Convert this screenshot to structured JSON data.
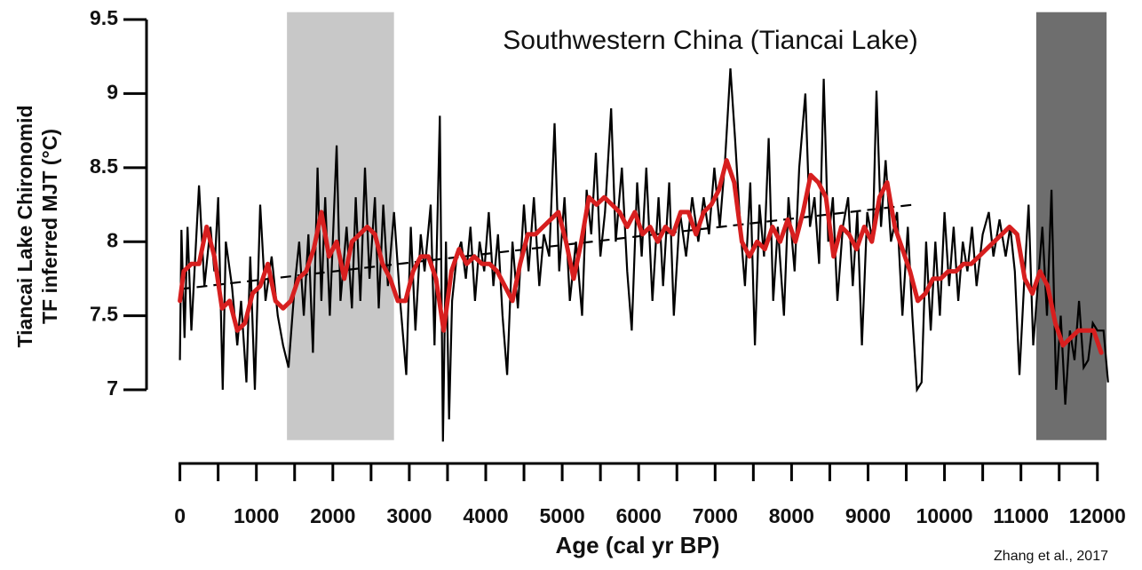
{
  "chart_data": {
    "type": "line",
    "title": "Southwestern China (Tiancai Lake)",
    "y_label_lines": [
      "Tiancai Lake Chironomid",
      "TF inferred MJT (°C)"
    ],
    "x_label": "Age (cal yr BP)",
    "source": "Zhang et al., 2017",
    "xlim": [
      -100,
      12200
    ],
    "ylim": [
      6.66,
      9.55
    ],
    "xticks": [
      0,
      1000,
      2000,
      3000,
      4000,
      5000,
      6000,
      7000,
      8000,
      9000,
      10000,
      11000,
      12000
    ],
    "xminorticks": [
      500,
      1500,
      2500,
      3500,
      4500,
      5500,
      6500,
      7500,
      8500,
      9500,
      10500,
      11500
    ],
    "yticks": [
      7,
      7.5,
      8,
      8.5,
      9,
      9.5
    ],
    "shaded_regions": [
      {
        "x": [
          1400,
          2800
        ],
        "color": "#c8c8c8"
      },
      {
        "x": [
          11200,
          12120
        ],
        "color": "#6e6e6e"
      }
    ],
    "series": [
      {
        "color": "#000000",
        "style": "solid",
        "x": [
          0,
          20,
          60,
          100,
          150,
          250,
          320,
          400,
          450,
          500,
          560,
          600,
          680,
          750,
          800,
          870,
          920,
          980,
          1050,
          1120,
          1200,
          1280,
          1350,
          1420,
          1500,
          1560,
          1620,
          1680,
          1740,
          1800,
          1850,
          1900,
          1960,
          2050,
          2100,
          2180,
          2250,
          2300,
          2360,
          2420,
          2480,
          2550,
          2600,
          2660,
          2720,
          2800,
          2880,
          2960,
          3020,
          3080,
          3150,
          3200,
          3280,
          3330,
          3400,
          3440,
          3480,
          3520,
          3560,
          3620,
          3680,
          3740,
          3800,
          3860,
          3920,
          3980,
          4040,
          4100,
          4160,
          4220,
          4280,
          4350,
          4420,
          4500,
          4560,
          4630,
          4700,
          4760,
          4830,
          4900,
          4960,
          5030,
          5100,
          5180,
          5260,
          5320,
          5380,
          5440,
          5500,
          5560,
          5640,
          5700,
          5780,
          5850,
          5910,
          5980,
          6040,
          6100,
          6180,
          6260,
          6320,
          6400,
          6460,
          6540,
          6620,
          6700,
          6780,
          6850,
          6920,
          6990,
          7060,
          7130,
          7200,
          7260,
          7330,
          7390,
          7460,
          7520,
          7580,
          7640,
          7700,
          7760,
          7820,
          7900,
          7960,
          8040,
          8100,
          8180,
          8240,
          8300,
          8360,
          8420,
          8480,
          8540,
          8600,
          8670,
          8740,
          8800,
          8860,
          8920,
          8990,
          9060,
          9110,
          9170,
          9230,
          9300,
          9380,
          9450,
          9520,
          9580,
          9640,
          9700,
          9760,
          9820,
          9880,
          9940,
          10000,
          10060,
          10120,
          10180,
          10240,
          10300,
          10360,
          10420,
          10500,
          10580,
          10640,
          10720,
          10800,
          10860,
          10920,
          10980,
          11040,
          11100,
          11160,
          11220,
          11280,
          11340,
          11400,
          11460,
          11520,
          11580,
          11640,
          11700,
          11760,
          11820,
          11880,
          11940,
          12000,
          12080,
          12140
        ],
        "values": [
          7.2,
          8.08,
          7.35,
          8.1,
          7.4,
          8.38,
          7.7,
          8.1,
          7.8,
          8.3,
          7.0,
          8.0,
          7.7,
          7.3,
          7.6,
          7.05,
          7.9,
          7.0,
          8.25,
          7.6,
          7.9,
          7.5,
          7.3,
          7.15,
          7.7,
          8.0,
          7.5,
          8.05,
          7.25,
          8.5,
          7.6,
          8.3,
          7.5,
          8.65,
          7.6,
          8.1,
          7.55,
          8.3,
          7.6,
          8.5,
          7.75,
          8.3,
          7.55,
          8.25,
          7.7,
          8.2,
          7.6,
          7.1,
          8.1,
          7.4,
          8.05,
          7.8,
          8.25,
          7.3,
          8.85,
          6.65,
          8.0,
          6.8,
          7.6,
          7.9,
          8.0,
          7.75,
          8.1,
          7.6,
          8.0,
          7.8,
          8.2,
          7.7,
          8.05,
          7.5,
          7.1,
          8.0,
          7.55,
          8.25,
          7.8,
          8.3,
          7.7,
          8.05,
          7.9,
          8.8,
          7.8,
          8.3,
          7.6,
          8.0,
          7.5,
          8.35,
          8.05,
          8.6,
          7.9,
          8.2,
          8.9,
          8.0,
          8.5,
          7.8,
          7.4,
          8.4,
          7.9,
          8.5,
          7.6,
          8.3,
          7.7,
          8.4,
          7.5,
          8.2,
          7.9,
          8.3,
          8.0,
          8.3,
          8.05,
          8.5,
          8.1,
          8.55,
          9.17,
          8.7,
          8.1,
          7.7,
          8.4,
          7.3,
          8.25,
          7.9,
          8.7,
          7.6,
          8.1,
          7.5,
          8.3,
          7.8,
          8.5,
          9.0,
          8.1,
          8.3,
          7.85,
          9.1,
          8.0,
          8.3,
          7.6,
          8.1,
          8.3,
          7.7,
          8.2,
          7.3,
          8.2,
          8.0,
          9.02,
          8.1,
          8.55,
          8.0,
          8.2,
          7.5,
          8.1,
          7.5,
          7.0,
          7.05,
          8.0,
          7.4,
          8.0,
          7.5,
          8.2,
          7.7,
          8.1,
          7.6,
          8.0,
          7.8,
          8.1,
          7.7,
          8.05,
          8.2,
          7.9,
          8.15,
          7.9,
          8.1,
          7.8,
          7.1,
          7.7,
          8.25,
          7.3,
          7.7,
          8.1,
          7.5,
          8.35,
          7.0,
          7.5,
          6.9,
          7.4,
          7.2,
          7.6,
          7.15,
          7.2,
          7.45,
          7.4,
          7.4,
          7.05
        ]
      },
      {
        "color": "#000000",
        "style": "dashed",
        "x": [
          0,
          9600
        ],
        "values": [
          7.68,
          8.25
        ]
      },
      {
        "color": "#d71f1f",
        "style": "thick",
        "x": [
          0,
          50,
          150,
          250,
          350,
          450,
          550,
          650,
          750,
          850,
          950,
          1050,
          1150,
          1250,
          1350,
          1450,
          1550,
          1650,
          1750,
          1850,
          1950,
          2050,
          2150,
          2250,
          2350,
          2450,
          2550,
          2650,
          2750,
          2850,
          2950,
          3050,
          3150,
          3250,
          3350,
          3450,
          3550,
          3650,
          3750,
          3850,
          3950,
          4050,
          4150,
          4250,
          4350,
          4450,
          4550,
          4650,
          4750,
          4850,
          4950,
          5050,
          5150,
          5250,
          5350,
          5450,
          5550,
          5650,
          5750,
          5850,
          5950,
          6050,
          6150,
          6250,
          6350,
          6450,
          6550,
          6650,
          6750,
          6850,
          6950,
          7050,
          7150,
          7250,
          7350,
          7450,
          7550,
          7650,
          7750,
          7850,
          7950,
          8050,
          8150,
          8250,
          8350,
          8450,
          8550,
          8650,
          8750,
          8850,
          8950,
          9050,
          9150,
          9250,
          9350,
          9450,
          9550,
          9650,
          9750,
          9850,
          9950,
          10050,
          10150,
          10250,
          10350,
          10450,
          10550,
          10650,
          10750,
          10850,
          10950,
          11050,
          11150,
          11250,
          11350,
          11450,
          11550,
          11650,
          11750,
          11850,
          11950,
          12050
        ],
        "values": [
          7.6,
          7.8,
          7.85,
          7.85,
          8.1,
          7.9,
          7.55,
          7.6,
          7.4,
          7.45,
          7.65,
          7.7,
          7.85,
          7.6,
          7.55,
          7.6,
          7.75,
          7.8,
          7.95,
          8.2,
          7.9,
          8.0,
          7.75,
          8.0,
          8.05,
          8.1,
          8.05,
          7.85,
          7.75,
          7.6,
          7.6,
          7.8,
          7.9,
          7.9,
          7.75,
          7.4,
          7.8,
          7.95,
          7.85,
          7.9,
          7.85,
          7.85,
          7.8,
          7.7,
          7.6,
          7.85,
          8.05,
          8.05,
          8.1,
          8.15,
          8.2,
          8.0,
          7.75,
          8.0,
          8.3,
          8.25,
          8.3,
          8.25,
          8.2,
          8.1,
          8.2,
          8.05,
          8.1,
          8.0,
          8.1,
          8.05,
          8.2,
          8.2,
          8.05,
          8.2,
          8.25,
          8.35,
          8.55,
          8.4,
          8.0,
          7.9,
          8.0,
          7.95,
          8.1,
          8.0,
          8.15,
          8.0,
          8.2,
          8.45,
          8.4,
          8.3,
          7.9,
          8.1,
          8.05,
          7.95,
          8.1,
          8.0,
          8.3,
          8.4,
          8.1,
          7.95,
          7.8,
          7.6,
          7.65,
          7.75,
          7.75,
          7.8,
          7.8,
          7.85,
          7.85,
          7.9,
          7.95,
          8.0,
          8.05,
          8.1,
          8.05,
          7.75,
          7.65,
          7.8,
          7.7,
          7.45,
          7.3,
          7.35,
          7.4,
          7.4,
          7.4,
          7.25
        ]
      }
    ]
  }
}
